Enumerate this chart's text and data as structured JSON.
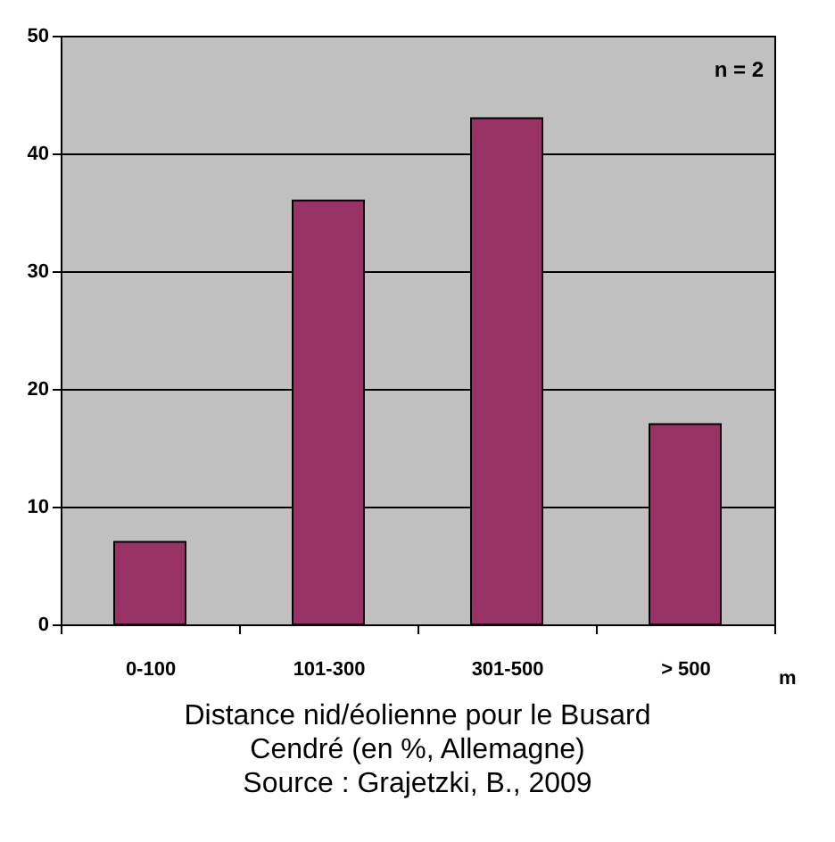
{
  "chart_data": {
    "type": "bar",
    "title": "Distance nid/éolienne pour le Busard Cendré (en %, Allemagne)",
    "xlabel": "m",
    "categories": [
      "0-100",
      "101-300",
      "301-500",
      "> 500"
    ],
    "values": [
      7,
      36,
      43,
      17
    ],
    "color": "#993366",
    "ylim": [
      0,
      50
    ],
    "yticks": [
      0,
      10,
      20,
      30,
      40,
      50
    ],
    "grid": "y",
    "annotations": [
      "n = 2",
      "Source : Grajetzki, B., 2009"
    ]
  }
}
